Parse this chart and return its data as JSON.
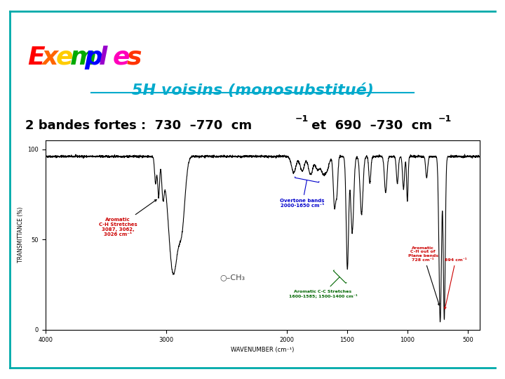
{
  "subtitle": "5H voisins (monosubstitué)",
  "subtitle_color": "#00aacc",
  "border_color": "#00aaaa",
  "bg_color": "#ffffff",
  "exemples_letters": [
    "E",
    "x",
    "e",
    "m",
    "p",
    "l",
    "e",
    "s"
  ],
  "exemples_colors": [
    "#ff0000",
    "#ff6600",
    "#ffcc00",
    "#00aa00",
    "#0000ff",
    "#9900cc",
    "#ff00bb",
    "#ff3300"
  ]
}
